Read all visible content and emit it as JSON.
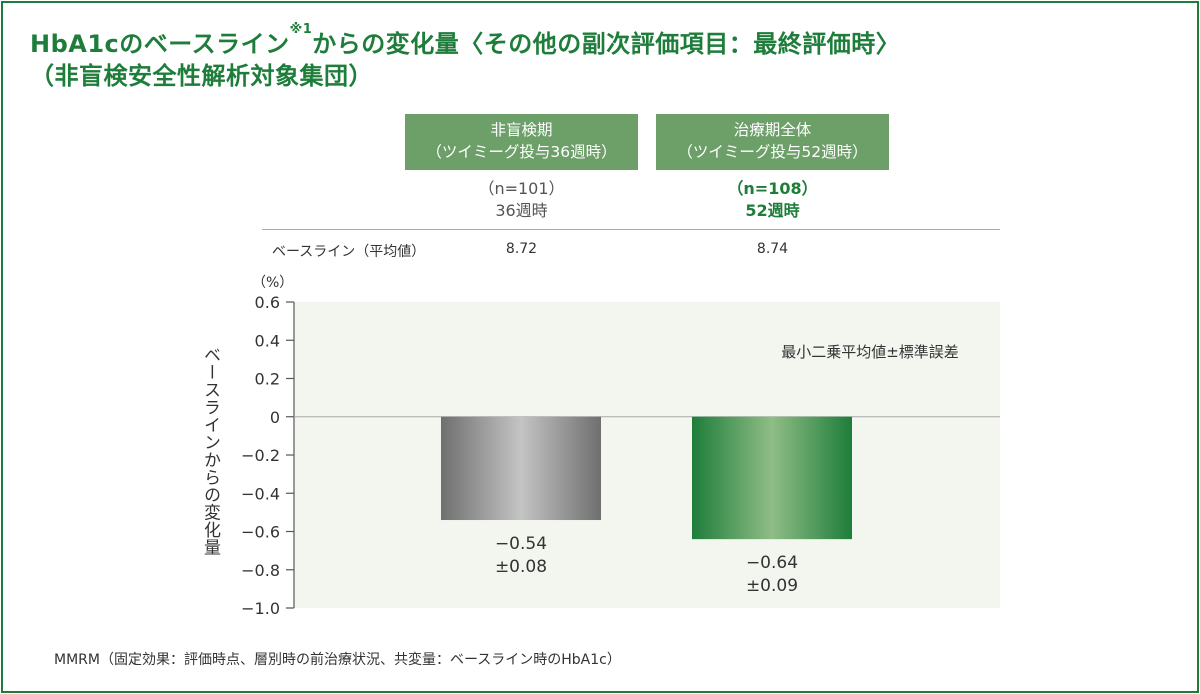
{
  "title_line1_main": "HbA1cのベースライン",
  "title_line1_sup": "※1",
  "title_line1_rest": "からの変化量〈その他の副次評価項目：最終評価時〉",
  "title_line2": "（非盲検安全性解析対象集団）",
  "groups": [
    {
      "line1": "非盲検期",
      "line2": "（ツイミーグ投与36週時）",
      "n": "（n=101）",
      "time": "36週時",
      "baseline": "8.72"
    },
    {
      "line1": "治療期全体",
      "line2": "（ツイミーグ投与52週時）",
      "n": "（n=108）",
      "time": "52週時",
      "baseline": "8.74"
    }
  ],
  "baseline_label": "ベースライン（平均値）",
  "unit_label": "（%）",
  "ylabel": "ベースラインからの変化量",
  "footnote": "MMRM（固定効果：評価時点、層別時の前治療状況、共変量：ベースライン時のHbA1c）",
  "colors": {
    "brand_green": "#1e7d3a",
    "box_green": "#6d9f68",
    "plot_bg": "#f3f5ef",
    "bar1_dark": "#6f6f6f",
    "bar1_light": "#c4c4c4",
    "bar2_dark": "#1e7d3a",
    "bar2_light": "#8fbd86"
  },
  "chart_data": {
    "type": "bar",
    "categories": [
      "36週時",
      "52週時"
    ],
    "values": [
      -0.54,
      -0.64
    ],
    "errors": [
      0.08,
      0.09
    ],
    "value_labels": [
      "−0.54",
      "−0.64"
    ],
    "error_labels": [
      "±0.08",
      "±0.09"
    ],
    "legend": "最小二乗平均値±標準誤差",
    "ylabel": "ベースラインからの変化量",
    "yunit": "（%）",
    "ylim": [
      -1.0,
      0.6
    ],
    "yticks": [
      0.6,
      0.4,
      0.2,
      0,
      -0.2,
      -0.4,
      -0.6,
      -0.8,
      -1.0
    ],
    "ytick_labels": [
      "0.6",
      "0.4",
      "0.2",
      "0",
      "−0.2",
      "−0.4",
      "−0.6",
      "−0.8",
      "−1.0"
    ],
    "grid": false
  }
}
